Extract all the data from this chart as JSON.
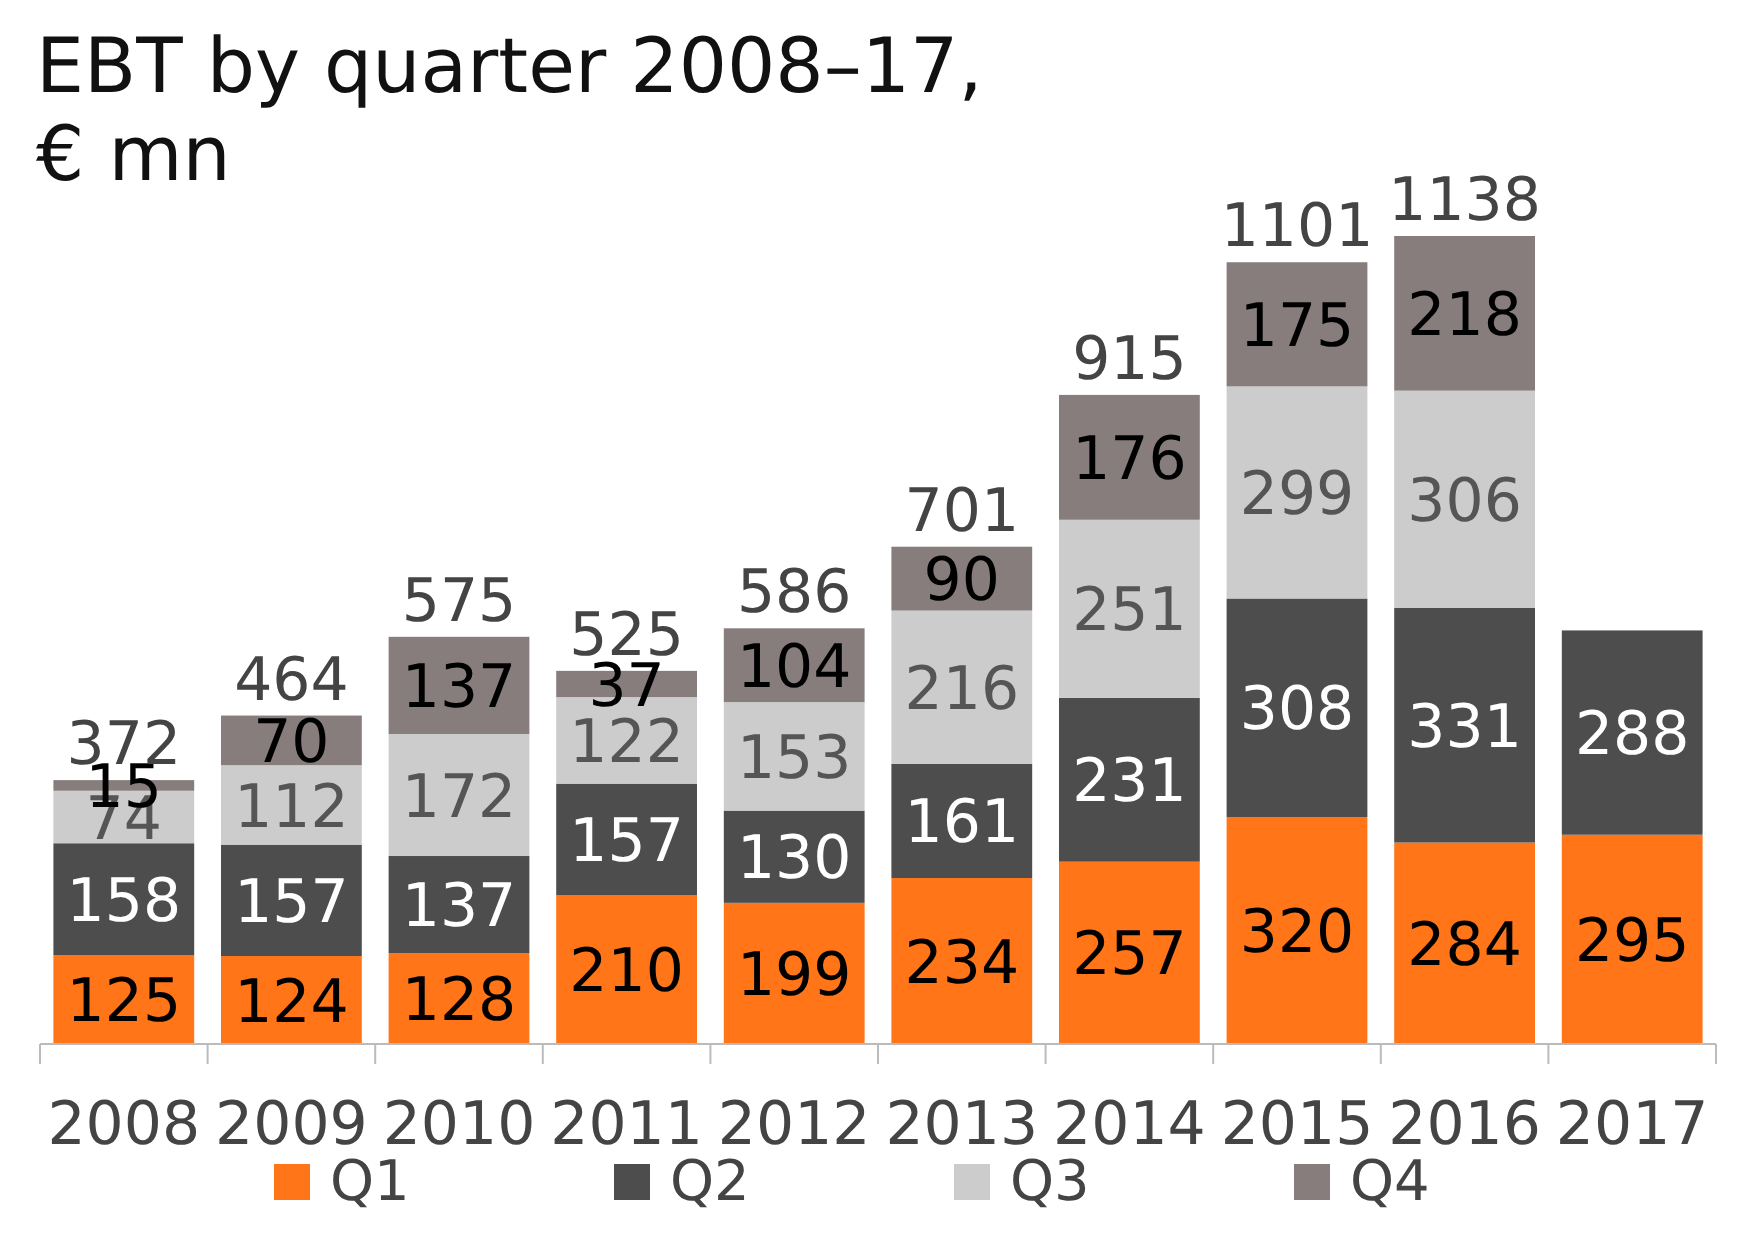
{
  "chart_data": {
    "type": "bar",
    "title": "EBT by quarter 2008–17, € mn",
    "stacked": true,
    "data_labels": true,
    "legend": "bottom",
    "categories": [
      "2008",
      "2009",
      "2010",
      "2011",
      "2012",
      "2013",
      "2014",
      "2015",
      "2016",
      "2017"
    ],
    "series": [
      {
        "name": "Q1",
        "color": "#ff7518",
        "values": [
          125,
          124,
          128,
          210,
          199,
          234,
          257,
          320,
          284,
          295
        ]
      },
      {
        "name": "Q2",
        "color": "#4d4d4d",
        "values": [
          158,
          157,
          137,
          157,
          130,
          161,
          231,
          308,
          331,
          288
        ]
      },
      {
        "name": "Q3",
        "color": "#cccccc",
        "values": [
          74,
          112,
          172,
          122,
          153,
          216,
          251,
          299,
          306,
          null
        ]
      },
      {
        "name": "Q4",
        "color": "#877d7d",
        "values": [
          15,
          70,
          137,
          37,
          104,
          90,
          176,
          175,
          218,
          null
        ]
      }
    ],
    "totals": [
      "372",
      "464",
      "575",
      "525",
      "586",
      "701",
      "915",
      "1101",
      "1138",
      null
    ]
  }
}
